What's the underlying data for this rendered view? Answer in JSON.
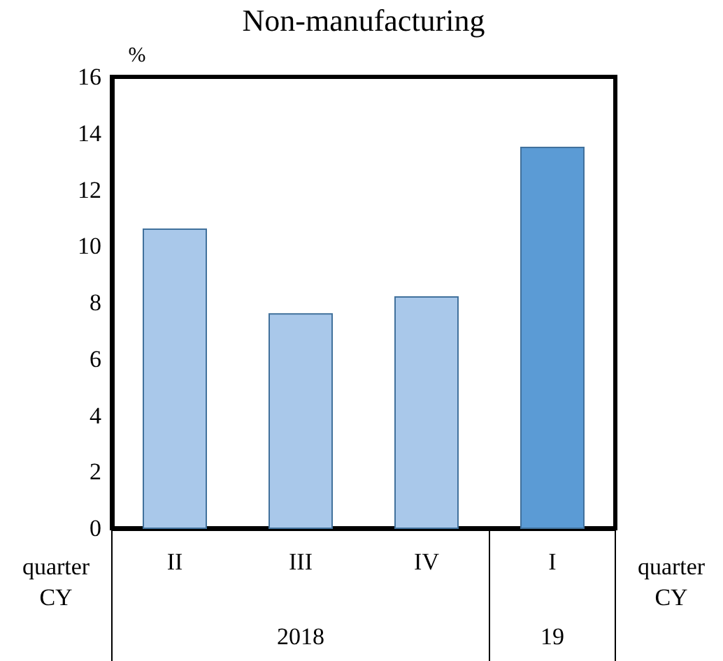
{
  "chart_data": {
    "type": "bar",
    "title": "Non-manufacturing",
    "ylabel": "%",
    "categories": [
      "II",
      "III",
      "IV",
      "I"
    ],
    "values": [
      10.6,
      7.6,
      8.2,
      13.5
    ],
    "colors": [
      "#a9c8ea",
      "#a9c8ea",
      "#a9c8ea",
      "#5b9bd5"
    ],
    "ylim": [
      0,
      16
    ],
    "yticks": [
      0,
      2,
      4,
      6,
      8,
      10,
      12,
      14,
      16
    ],
    "grid": false,
    "annotations": [
      "quarter",
      "CY",
      "quarter",
      "CY",
      "2018",
      "19"
    ]
  }
}
